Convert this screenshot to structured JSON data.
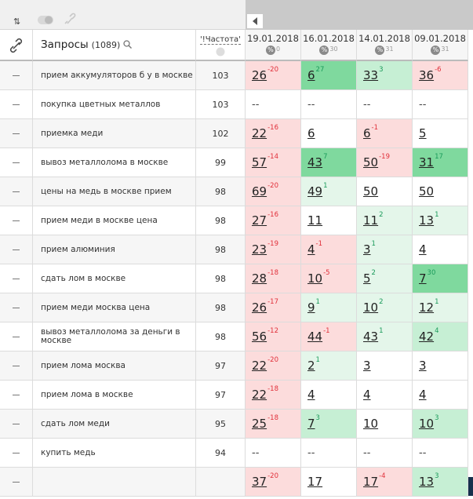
{
  "header": {
    "query_title": "Запросы",
    "query_count": "(1089)",
    "frequency": "'!Частота'",
    "dates": [
      {
        "date": "19.01.2018",
        "count": 0
      },
      {
        "date": "16.01.2018",
        "count": 30
      },
      {
        "date": "14.01.2018",
        "count": 31
      },
      {
        "date": "09.01.2018",
        "count": 31
      }
    ]
  },
  "rows": [
    {
      "query": "прием аккумуляторов б у в москве",
      "frequency": 103,
      "positions": [
        {
          "pos": 26,
          "change": -20
        },
        {
          "pos": 6,
          "change": 27
        },
        {
          "pos": 33,
          "change": 3
        },
        {
          "pos": 36,
          "change": -6
        }
      ]
    },
    {
      "query": "покупка цветных металлов",
      "frequency": 103,
      "positions": [
        {
          "pos": "--"
        },
        {
          "pos": "--"
        },
        {
          "pos": "--"
        },
        {
          "pos": "--"
        }
      ]
    },
    {
      "query": "приемка меди",
      "frequency": 102,
      "positions": [
        {
          "pos": 22,
          "change": -16
        },
        {
          "pos": 6
        },
        {
          "pos": 6,
          "change": -1
        },
        {
          "pos": 5
        }
      ]
    },
    {
      "query": "вывоз металлолома в москве",
      "frequency": 99,
      "positions": [
        {
          "pos": 57,
          "change": -14
        },
        {
          "pos": 43,
          "change": 7
        },
        {
          "pos": 50,
          "change": -19
        },
        {
          "pos": 31,
          "change": 17
        }
      ]
    },
    {
      "query": "цены на медь в москве прием",
      "frequency": 98,
      "positions": [
        {
          "pos": 69,
          "change": -20
        },
        {
          "pos": 49,
          "change": 1
        },
        {
          "pos": 50
        },
        {
          "pos": 50
        }
      ]
    },
    {
      "query": "прием меди в москве цена",
      "frequency": 98,
      "positions": [
        {
          "pos": 27,
          "change": -16
        },
        {
          "pos": 11
        },
        {
          "pos": 11,
          "change": 2
        },
        {
          "pos": 13,
          "change": 1
        }
      ]
    },
    {
      "query": "прием алюминия",
      "frequency": 98,
      "positions": [
        {
          "pos": 23,
          "change": -19
        },
        {
          "pos": 4,
          "change": -1
        },
        {
          "pos": 3,
          "change": 1
        },
        {
          "pos": 4
        }
      ]
    },
    {
      "query": "сдать лом в москве",
      "frequency": 98,
      "positions": [
        {
          "pos": 28,
          "change": -18
        },
        {
          "pos": 10,
          "change": -5
        },
        {
          "pos": 5,
          "change": 2
        },
        {
          "pos": 7,
          "change": 30
        }
      ]
    },
    {
      "query": "прием меди москва цена",
      "frequency": 98,
      "positions": [
        {
          "pos": 26,
          "change": -17
        },
        {
          "pos": 9,
          "change": 1
        },
        {
          "pos": 10,
          "change": 2
        },
        {
          "pos": 12,
          "change": 1
        }
      ]
    },
    {
      "query": "вывоз металлолома за деньги в москве",
      "frequency": 98,
      "positions": [
        {
          "pos": 56,
          "change": -12
        },
        {
          "pos": 44,
          "change": -1
        },
        {
          "pos": 43,
          "change": 1
        },
        {
          "pos": 42,
          "change": 4
        }
      ]
    },
    {
      "query": "прием лома москва",
      "frequency": 97,
      "positions": [
        {
          "pos": 22,
          "change": -20
        },
        {
          "pos": 2,
          "change": 1
        },
        {
          "pos": 3
        },
        {
          "pos": 3
        }
      ]
    },
    {
      "query": "прием лома в москве",
      "frequency": 97,
      "positions": [
        {
          "pos": 22,
          "change": -18
        },
        {
          "pos": 4
        },
        {
          "pos": 4
        },
        {
          "pos": 4
        }
      ]
    },
    {
      "query": "сдать лом меди",
      "frequency": 95,
      "positions": [
        {
          "pos": 25,
          "change": -18
        },
        {
          "pos": 7,
          "change": 3
        },
        {
          "pos": 10
        },
        {
          "pos": 10,
          "change": 3
        }
      ]
    },
    {
      "query": "купить медь",
      "frequency": 94,
      "positions": [
        {
          "pos": "--"
        },
        {
          "pos": "--"
        },
        {
          "pos": "--"
        },
        {
          "pos": "--"
        }
      ]
    },
    {
      "query": null,
      "frequency": null,
      "positions": [
        {
          "pos": 37,
          "change": -20
        },
        {
          "pos": 17
        },
        {
          "pos": 17,
          "change": -4
        },
        {
          "pos": 13,
          "change": 3
        }
      ]
    }
  ]
}
